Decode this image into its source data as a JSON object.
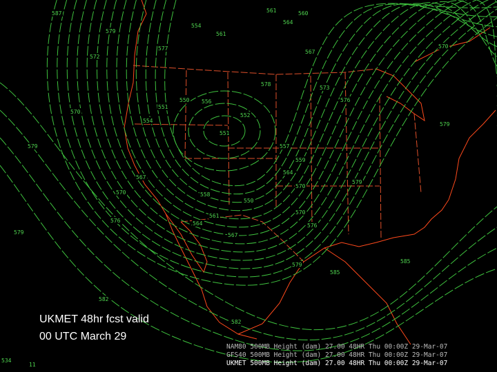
{
  "caption": [
    "UKMET 48hr fcst valid",
    "00 UTC March 29"
  ],
  "legend": [
    "NAM80 500MB Height (dam)   27.00   48HR Thu 00:00Z 29-Mar-07",
    "GFS40 500MB Height (dam)   27.00   48HR Thu 00:00Z 29-Mar-07",
    "UKMET 500MB Height (dam)   27.00   48HR Thu 00:00Z 29-Mar-07"
  ],
  "corner_labels": [
    "534",
    "11"
  ],
  "contour_labels": [
    "587",
    "579",
    "577",
    "572",
    "570",
    "579",
    "576",
    "579",
    "582",
    "582",
    "561",
    "554",
    "561",
    "564",
    "560",
    "567",
    "573",
    "576",
    "570",
    "578",
    "550",
    "556",
    "552",
    "551",
    "551",
    "554",
    "557",
    "559",
    "564",
    "570",
    "579",
    "558",
    "550",
    "570",
    "561",
    "564",
    "567",
    "576",
    "579",
    "585",
    "585",
    "579",
    "567",
    "570"
  ]
}
